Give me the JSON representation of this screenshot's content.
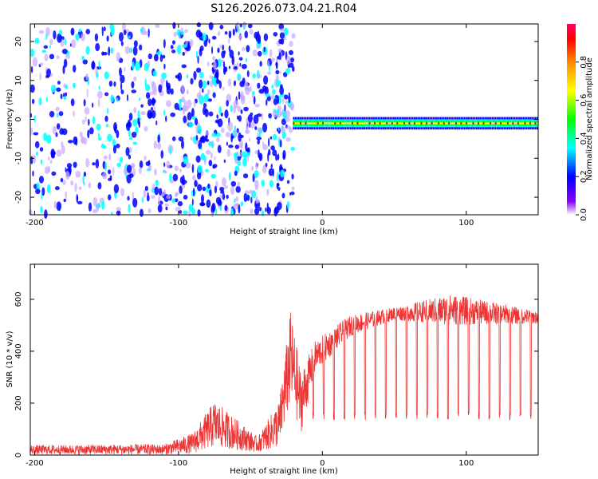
{
  "title": "S126.2026.073.04.21.R04",
  "chart_data": [
    {
      "type": "heatmap",
      "xlabel": "Height of straight line (km)",
      "ylabel": "Frequency (Hz)",
      "xlim": [
        -203,
        150
      ],
      "ylim": [
        -24.5,
        24.5
      ],
      "xticks": [
        -200,
        -100,
        0,
        100
      ],
      "yticks": [
        -20,
        -10,
        0,
        10,
        20
      ],
      "description_regions": [
        {
          "x_range": [
            -203,
            -20
          ],
          "y_range": [
            -24.5,
            24.5
          ],
          "value": "scattered low amplitude (0.05-0.25)"
        },
        {
          "x_range": [
            -20,
            150
          ],
          "y_center": -1,
          "value": "narrow band, peak amplitude ~0.95"
        }
      ],
      "colorbar": {
        "label": "Normalized spectral amplitude",
        "range": [
          0.0,
          1.0
        ],
        "ticks": [
          0.0,
          0.2,
          0.4,
          0.6,
          0.8
        ],
        "colors": [
          "#ffffff",
          "#8800ff",
          "#0000ff",
          "#00ffff",
          "#00ff00",
          "#ffff00",
          "#ff8800",
          "#ff0000",
          "#ff0066"
        ]
      }
    },
    {
      "type": "line",
      "xlabel": "Height of straight line (km)",
      "ylabel": "SNR (10 * v/v)",
      "xlim": [
        -203,
        150
      ],
      "ylim": [
        0,
        735
      ],
      "xticks": [
        -200,
        -100,
        0,
        100
      ],
      "yticks": [
        0,
        200,
        400,
        600
      ],
      "series_color": "#ee3333",
      "envelope": [
        {
          "x": -203,
          "mean": 20,
          "noise": 18
        },
        {
          "x": -110,
          "mean": 22,
          "noise": 20
        },
        {
          "x": -90,
          "mean": 45,
          "noise": 40
        },
        {
          "x": -75,
          "mean": 120,
          "noise": 90
        },
        {
          "x": -60,
          "mean": 80,
          "noise": 60
        },
        {
          "x": -45,
          "mean": 40,
          "noise": 30
        },
        {
          "x": -30,
          "mean": 120,
          "noise": 90
        },
        {
          "x": -22,
          "mean": 380,
          "noise": 180
        },
        {
          "x": -15,
          "mean": 200,
          "noise": 120
        },
        {
          "x": -5,
          "mean": 380,
          "noise": 60
        },
        {
          "x": 20,
          "mean": 500,
          "noise": 40
        },
        {
          "x": 50,
          "mean": 545,
          "noise": 25
        },
        {
          "x": 90,
          "mean": 560,
          "noise": 60
        },
        {
          "x": 150,
          "mean": 530,
          "noise": 25
        }
      ],
      "periodic_dips": {
        "start": -10,
        "end": 150,
        "period": 7.2,
        "dip_level": 150
      }
    }
  ]
}
